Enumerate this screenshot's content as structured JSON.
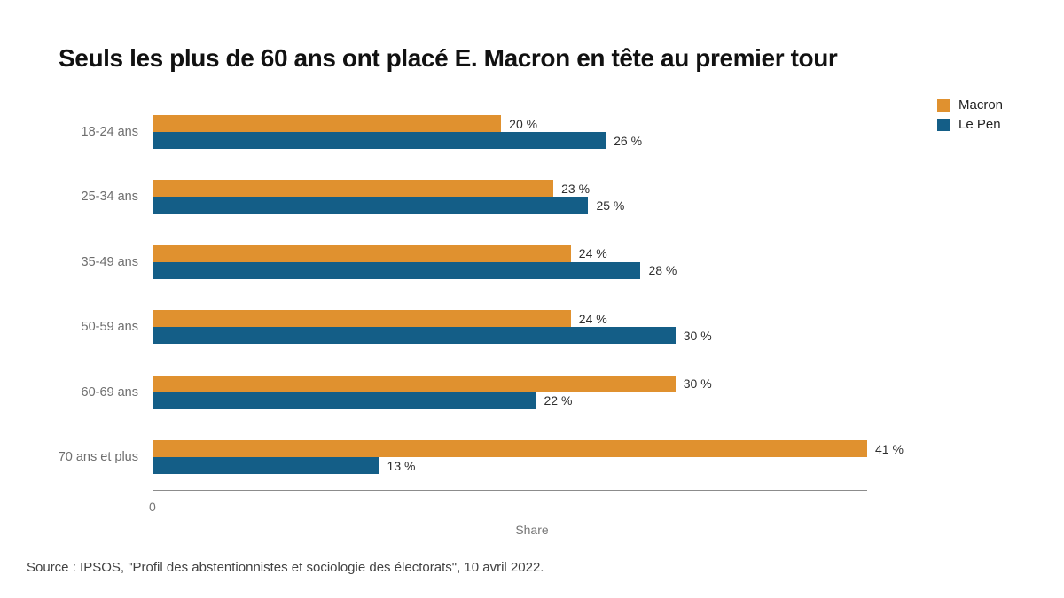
{
  "chart_data": {
    "type": "bar",
    "orientation": "horizontal",
    "title": "Seuls les plus de 60 ans ont placé E. Macron en tête au premier tour",
    "categories": [
      "18-24 ans",
      "25-34 ans",
      "35-49 ans",
      "50-59 ans",
      "60-69 ans",
      "70 ans et plus"
    ],
    "series": [
      {
        "name": "Macron",
        "color": "#E0912F",
        "values": [
          20,
          23,
          24,
          24,
          30,
          41
        ]
      },
      {
        "name": "Le Pen",
        "color": "#145E87",
        "values": [
          26,
          25,
          28,
          30,
          22,
          13
        ]
      }
    ],
    "value_suffix": " %",
    "xlabel": "Share",
    "x_axis": {
      "min": 0,
      "max": 41,
      "tick_labels": [
        "0"
      ]
    },
    "legend_position": "top-right",
    "grid": false
  },
  "axis": {
    "zero_tick": "0"
  },
  "footer": {
    "source": "Source : IPSOS, \"Profil des abstentionnistes et sociologie des électorats\", 10 avril 2022."
  },
  "colors": {
    "macron": "#E0912F",
    "lepen": "#145E87",
    "axis_line": "#8c8c8c",
    "label_grey": "#6e6e6e"
  }
}
